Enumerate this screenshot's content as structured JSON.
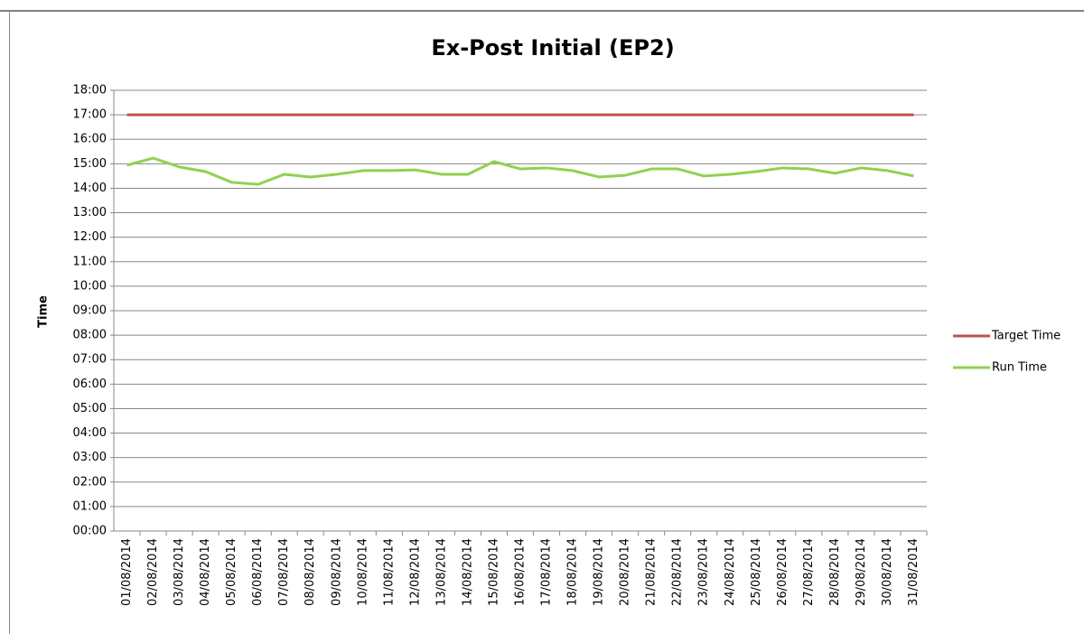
{
  "chart_data": {
    "type": "line",
    "title": "Ex-Post Initial (EP2)",
    "y_label": "Time",
    "categories": [
      "01/08/2014",
      "02/08/2014",
      "03/08/2014",
      "04/08/2014",
      "05/08/2014",
      "06/08/2014",
      "07/08/2014",
      "08/08/2014",
      "09/08/2014",
      "10/08/2014",
      "11/08/2014",
      "12/08/2014",
      "13/08/2014",
      "14/08/2014",
      "15/08/2014",
      "16/08/2014",
      "17/08/2014",
      "18/08/2014",
      "19/08/2014",
      "20/08/2014",
      "21/08/2014",
      "22/08/2014",
      "23/08/2014",
      "24/08/2014",
      "25/08/2014",
      "26/08/2014",
      "27/08/2014",
      "28/08/2014",
      "29/08/2014",
      "30/08/2014",
      "31/08/2014"
    ],
    "series": [
      {
        "name": "Target Time",
        "color": "#c0504d",
        "values": [
          17,
          17,
          17,
          17,
          17,
          17,
          17,
          17,
          17,
          17,
          17,
          17,
          17,
          17,
          17,
          17,
          17,
          17,
          17,
          17,
          17,
          17,
          17,
          17,
          17,
          17,
          17,
          17,
          17,
          17,
          17
        ]
      },
      {
        "name": "Run Time",
        "color": "#92d050",
        "values": [
          14.94,
          15.23,
          14.87,
          14.68,
          14.24,
          14.16,
          14.57,
          14.46,
          14.57,
          14.72,
          14.72,
          14.75,
          14.57,
          14.57,
          15.09,
          14.79,
          14.83,
          14.72,
          14.46,
          14.53,
          14.79,
          14.79,
          14.5,
          14.57,
          14.68,
          14.83,
          14.79,
          14.61,
          14.83,
          14.72,
          14.5
        ]
      }
    ],
    "ylim": [
      0,
      18
    ],
    "yticks": [
      {
        "value": 0,
        "label": "00:00"
      },
      {
        "value": 1,
        "label": "01:00"
      },
      {
        "value": 2,
        "label": "02:00"
      },
      {
        "value": 3,
        "label": "03:00"
      },
      {
        "value": 4,
        "label": "04:00"
      },
      {
        "value": 5,
        "label": "05:00"
      },
      {
        "value": 6,
        "label": "06:00"
      },
      {
        "value": 7,
        "label": "07:00"
      },
      {
        "value": 8,
        "label": "08:00"
      },
      {
        "value": 9,
        "label": "09:00"
      },
      {
        "value": 10,
        "label": "10:00"
      },
      {
        "value": 11,
        "label": "11:00"
      },
      {
        "value": 12,
        "label": "12:00"
      },
      {
        "value": 13,
        "label": "13:00"
      },
      {
        "value": 14,
        "label": "14:00"
      },
      {
        "value": 15,
        "label": "15:00"
      },
      {
        "value": 16,
        "label": "16:00"
      },
      {
        "value": 17,
        "label": "17:00"
      },
      {
        "value": 18,
        "label": "18:00"
      }
    ],
    "grid": true,
    "legend": "right"
  }
}
